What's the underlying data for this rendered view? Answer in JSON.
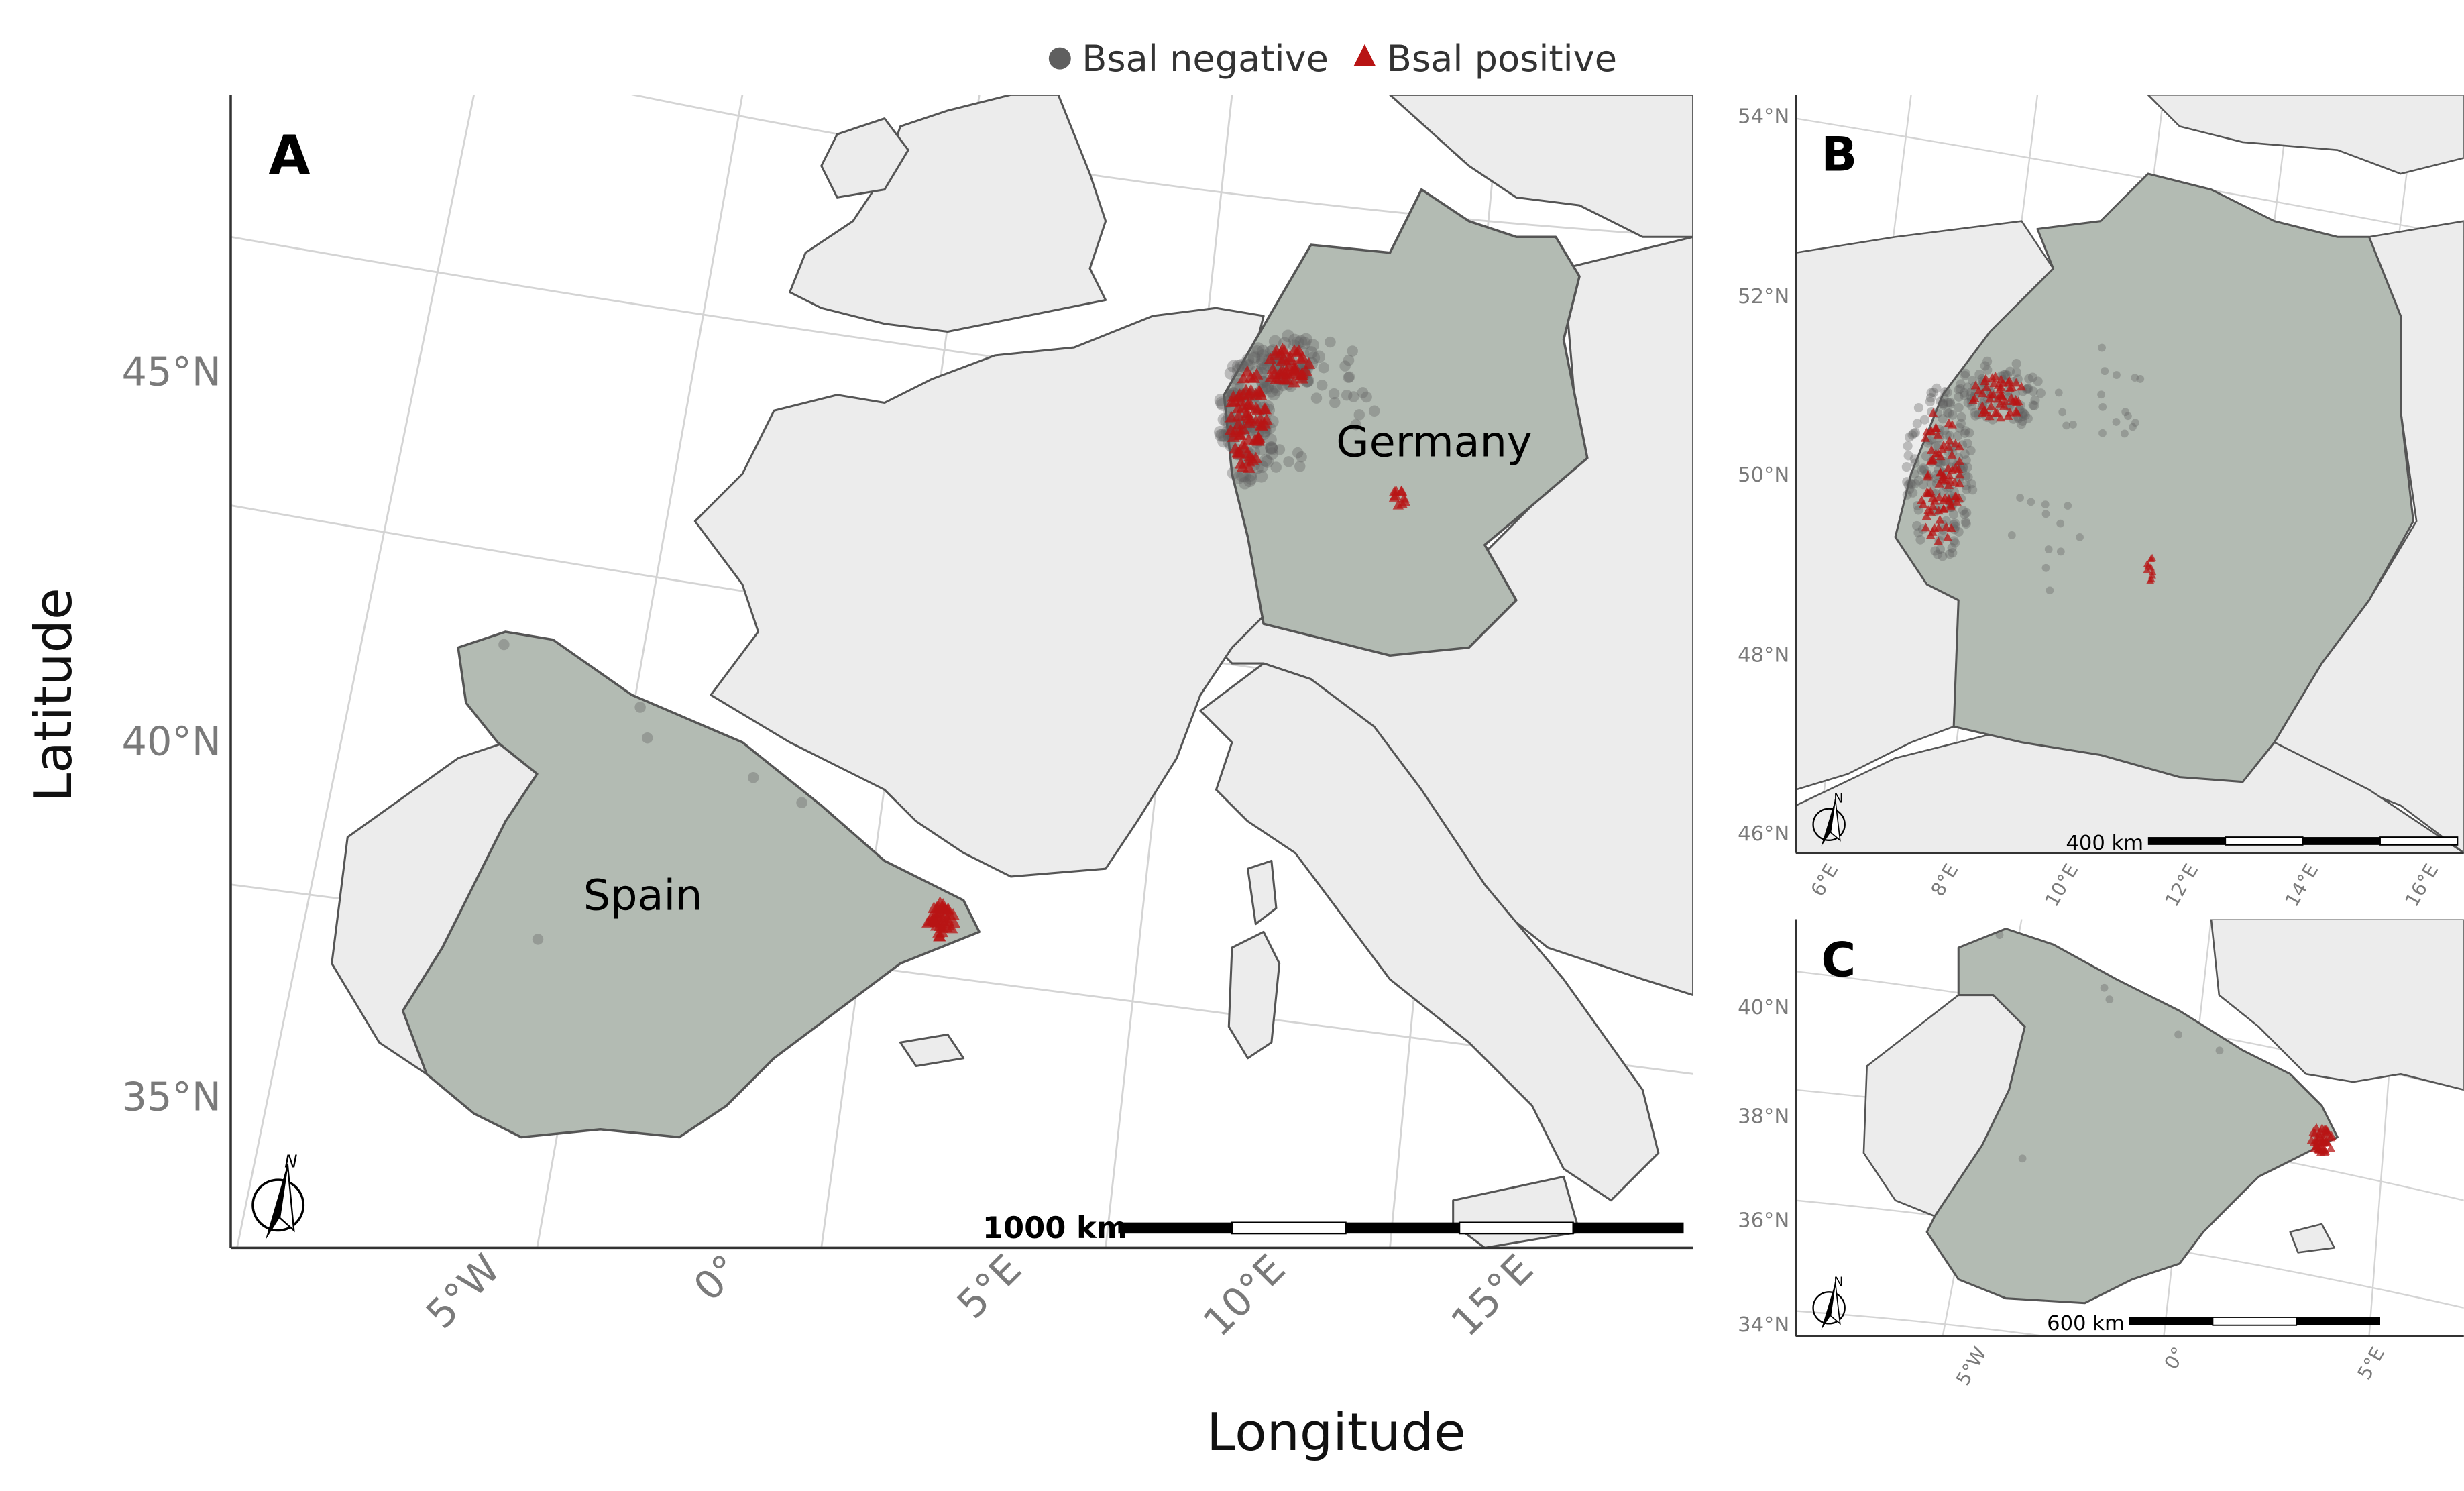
{
  "legend": {
    "items": [
      {
        "label": "Bsal negative",
        "color": "#5f5f5f",
        "symbol": "circle"
      },
      {
        "label": "Bsal positive",
        "color": "#b81414",
        "symbol": "triangle"
      }
    ]
  },
  "axes": {
    "xlabel": "Longitude",
    "ylabel": "Latitude"
  },
  "colors": {
    "focus_country": "#b3bbb3",
    "other_land": "#ececec",
    "borders": "#555555",
    "graticule": "#d4d4d4",
    "axis_text": "#7a7a7a",
    "negative": "#5f5f5f",
    "positive": "#b81414"
  },
  "panels": {
    "A": {
      "label": "A",
      "country_labels": [
        "Germany",
        "Spain"
      ],
      "lat_ticks": [
        "45°N",
        "40°N",
        "35°N"
      ],
      "lon_ticks": [
        "5°W",
        "0°",
        "5°E",
        "10°E",
        "15°E"
      ],
      "scalebar": "1000 km",
      "north_arrow": "N"
    },
    "B": {
      "label": "B",
      "lat_ticks": [
        "54°N",
        "52°N",
        "50°N",
        "48°N",
        "46°N"
      ],
      "lon_ticks": [
        "6°E",
        "8°E",
        "10°E",
        "12°E",
        "14°E",
        "16°E"
      ],
      "scalebar": "400 km",
      "north_arrow": "N"
    },
    "C": {
      "label": "C",
      "lat_ticks": [
        "40°N",
        "38°N",
        "36°N",
        "34°N"
      ],
      "lon_ticks": [
        "5°W",
        "0°",
        "5°E"
      ],
      "scalebar": "600 km",
      "north_arrow": "N"
    }
  }
}
